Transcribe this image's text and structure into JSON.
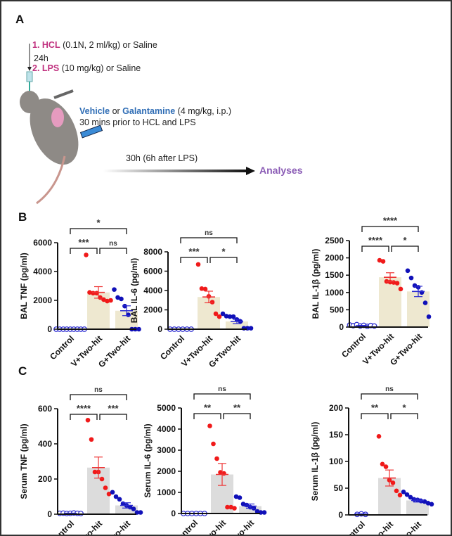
{
  "panel_a": {
    "label": "A",
    "step1_num": "1. HCL",
    "step1_rest": " (0.1N, 2 ml/kg) or Saline",
    "interval": "24h",
    "step2_num": "2. LPS",
    "step2_rest": " (10 mg/kg) or Saline",
    "vehicle": "Vehicle",
    "or": " or ",
    "galantamine": "Galantamine",
    "dose": " (4 mg/kg, i.p.)",
    "timing": "30 mins prior to HCL and LPS",
    "duration": "30h (6h after LPS)",
    "endpoint": "Analyses",
    "colors": {
      "step": "#c0317f",
      "drug": "#2f6db5",
      "endpoint": "#8a5bb5"
    }
  },
  "panel_b": {
    "label": "B"
  },
  "panel_c": {
    "label": "C"
  },
  "chart_data": [
    {
      "type": "bar",
      "title": "",
      "ylabel": "BAL TNF (pg/ml)",
      "ylim": [
        0,
        6000
      ],
      "yticks": [
        0,
        2000,
        4000,
        6000
      ],
      "categories": [
        "Control",
        "V+Two-hit",
        "G+Two-hit"
      ],
      "bar_color": "#eee8d0",
      "means": [
        10,
        2550,
        1280
      ],
      "sem": [
        5,
        400,
        340
      ],
      "points": [
        [
          0,
          0,
          0,
          0,
          0,
          0,
          0,
          0,
          0
        ],
        [
          5150,
          2550,
          2500,
          2500,
          2200,
          2050,
          1950,
          2000
        ],
        [
          2750,
          2200,
          2100,
          1600,
          1000,
          0,
          0,
          0
        ]
      ],
      "significance": [
        {
          "pair": "Control-V+Two-hit",
          "label": "***"
        },
        {
          "pair": "V+Two-hit-G+Two-hit",
          "label": "ns"
        },
        {
          "pair": "Control-G+Two-hit",
          "label": "*"
        }
      ]
    },
    {
      "type": "bar",
      "title": "",
      "ylabel": "BAL IL-6 (pg/ml)",
      "ylim": [
        0,
        8000
      ],
      "yticks": [
        0,
        2000,
        4000,
        6000,
        8000
      ],
      "categories": [
        "Control",
        "V+Two-hit",
        "G+Two-hit"
      ],
      "bar_color": "#eee8d0",
      "means": [
        10,
        3330,
        800
      ],
      "sem": [
        5,
        600,
        220
      ],
      "points": [
        [
          0,
          0,
          0,
          0,
          0,
          0
        ],
        [
          6700,
          4200,
          4150,
          3400,
          2800,
          1600,
          1300
        ],
        [
          1600,
          1350,
          1300,
          1300,
          1000,
          800,
          100,
          100,
          100
        ]
      ],
      "significance": [
        {
          "pair": "Control-V+Two-hit",
          "label": "***"
        },
        {
          "pair": "V+Two-hit-G+Two-hit",
          "label": "*"
        },
        {
          "pair": "Control-G+Two-hit",
          "label": "ns"
        }
      ]
    },
    {
      "type": "bar",
      "title": "",
      "ylabel": "BAL IL-1β (pg/ml)",
      "ylim": [
        0,
        2500
      ],
      "yticks": [
        0,
        500,
        1000,
        1500,
        2000,
        2500
      ],
      "categories": [
        "Control",
        "V+Two-hit",
        "G+Two-hit"
      ],
      "bar_color": "#eee8d0",
      "means": [
        40,
        1440,
        1030
      ],
      "sem": [
        8,
        130,
        150
      ],
      "points": [
        [
          60,
          40,
          70,
          30,
          50,
          20,
          45,
          30
        ],
        [
          1930,
          1900,
          1320,
          1300,
          1290,
          1270,
          1100
        ],
        [
          1630,
          1420,
          1200,
          1150,
          1000,
          700,
          300
        ]
      ],
      "significance": [
        {
          "pair": "Control-V+Two-hit",
          "label": "****"
        },
        {
          "pair": "V+Two-hit-G+Two-hit",
          "label": "*"
        },
        {
          "pair": "Control-G+Two-hit",
          "label": "****"
        }
      ]
    },
    {
      "type": "bar",
      "title": "",
      "ylabel": "Serum TNF (pg/ml)",
      "ylim": [
        0,
        600
      ],
      "yticks": [
        0,
        200,
        400,
        600
      ],
      "categories": [
        "Control",
        "V+Two-hit",
        "G+Two-hit"
      ],
      "bar_color": "#dcdcdc",
      "means": [
        5,
        265,
        50
      ],
      "sem": [
        1,
        60,
        15
      ],
      "points": [
        [
          5,
          6,
          4,
          5,
          7,
          5,
          4
        ],
        [
          535,
          425,
          240,
          240,
          200,
          150,
          115
        ],
        [
          125,
          100,
          85,
          60,
          50,
          40,
          30,
          10,
          10
        ]
      ],
      "significance": [
        {
          "pair": "Control-V+Two-hit",
          "label": "****"
        },
        {
          "pair": "V+Two-hit-G+Two-hit",
          "label": "***"
        },
        {
          "pair": "Control-G+Two-hit",
          "label": "ns"
        }
      ]
    },
    {
      "type": "bar",
      "title": "",
      "ylabel": "Serum IL-6 (pg/ml)",
      "ylim": [
        0,
        5000
      ],
      "yticks": [
        0,
        1000,
        2000,
        3000,
        4000,
        5000
      ],
      "categories": [
        "Control",
        "V+Two-hit",
        "G+Two-hit"
      ],
      "bar_color": "#dcdcdc",
      "means": [
        5,
        1850,
        350
      ],
      "sem": [
        1,
        520,
        100
      ],
      "points": [
        [
          0,
          0,
          0,
          0,
          0,
          0
        ],
        [
          4150,
          3300,
          2600,
          1950,
          1900,
          300,
          300,
          250
        ],
        [
          800,
          750,
          450,
          400,
          300,
          250,
          100,
          50,
          50
        ]
      ],
      "significance": [
        {
          "pair": "Control-V+Two-hit",
          "label": "**"
        },
        {
          "pair": "V+Two-hit-G+Two-hit",
          "label": "**"
        },
        {
          "pair": "Control-G+Two-hit",
          "label": "ns"
        }
      ]
    },
    {
      "type": "bar",
      "title": "",
      "ylabel": "Serum IL-1β (pg/ml)",
      "ylim": [
        0,
        200
      ],
      "yticks": [
        0,
        50,
        100,
        150,
        200
      ],
      "categories": [
        "Control",
        "V+Two-hit",
        "G+Two-hit"
      ],
      "bar_color": "#dcdcdc",
      "means": [
        1.5,
        69,
        27
      ],
      "sem": [
        0.5,
        15,
        3
      ],
      "points": [
        [
          1,
          2,
          1
        ],
        [
          147,
          95,
          90,
          65,
          60,
          45,
          37
        ],
        [
          43,
          38,
          33,
          29,
          28,
          26,
          25,
          22,
          20
        ]
      ],
      "significance": [
        {
          "pair": "Control-V+Two-hit",
          "label": "**"
        },
        {
          "pair": "V+Two-hit-G+Two-hit",
          "label": "*"
        },
        {
          "pair": "Control-G+Two-hit",
          "label": "ns"
        }
      ]
    }
  ]
}
